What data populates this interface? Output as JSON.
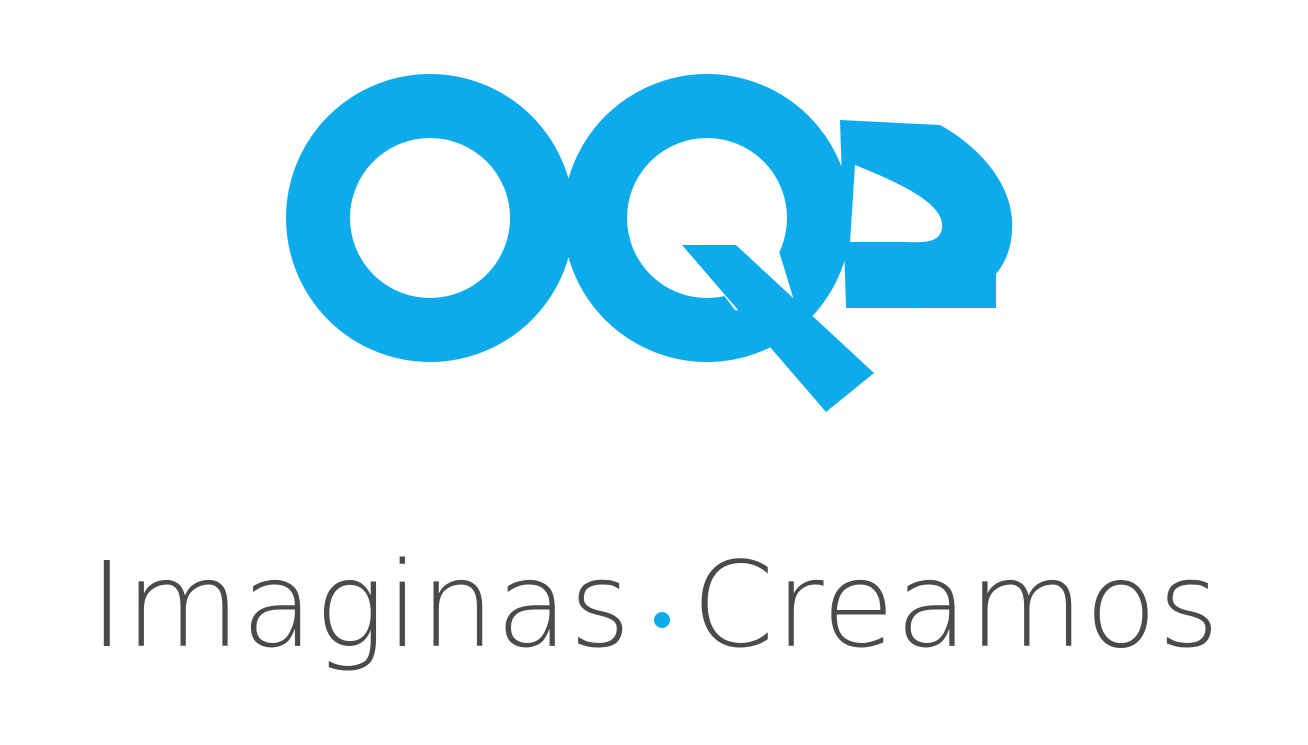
{
  "logo": {
    "wordmark": "OQ2",
    "color": "#0eabec"
  },
  "tagline": {
    "first_word": "Imaginas",
    "second_word": "Creamos",
    "text_color": "#4a4a4c",
    "dot_color": "#0eabec"
  }
}
